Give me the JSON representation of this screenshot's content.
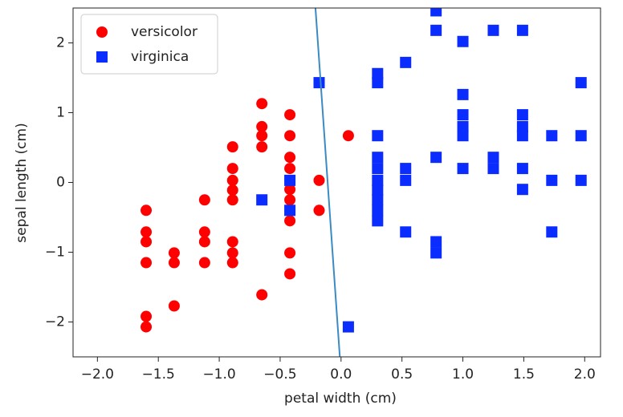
{
  "chart_data": {
    "type": "scatter",
    "x_label": "petal width (cm)",
    "y_label": "sepal length (cm)",
    "xlim": [
      -2.2,
      2.13
    ],
    "ylim": [
      -2.5,
      2.5
    ],
    "xticks": [
      {
        "value": -2,
        "label": "−2.0"
      },
      {
        "value": -1.5,
        "label": "−1.5"
      },
      {
        "value": -1,
        "label": "−1.0"
      },
      {
        "value": -0.5,
        "label": "−0.5"
      },
      {
        "value": 0,
        "label": "0.0"
      },
      0.5,
      {
        "value": 1,
        "label": "1.0"
      },
      1.5,
      {
        "value": 2,
        "label": "2.0"
      }
    ],
    "yticks": [
      {
        "value": -2,
        "label": "−2"
      },
      {
        "value": -1,
        "label": "−1"
      },
      0,
      1,
      2
    ],
    "legend": "upper left",
    "series": [
      {
        "name": "versicolor",
        "color": "#ff0000",
        "marker": "circle",
        "x": [
          -1.6,
          -1.6,
          -1.6,
          -1.6,
          -1.6,
          -1.6,
          -1.37,
          -1.37,
          -1.37,
          -1.12,
          -1.12,
          -1.12,
          -1.12,
          -0.89,
          -0.89,
          -0.89,
          -0.89,
          -0.89,
          -0.89,
          -0.89,
          -0.89,
          -0.65,
          -0.65,
          -0.65,
          -0.65,
          -0.65,
          -0.42,
          -0.42,
          -0.42,
          -0.42,
          -0.42,
          -0.42,
          -0.42,
          -0.42,
          -0.42,
          -0.18,
          -0.18,
          0.06
        ],
        "values": [
          -0.4,
          -0.71,
          -0.85,
          -1.15,
          -1.92,
          -2.07,
          -1.01,
          -1.15,
          -1.77,
          -0.25,
          -0.71,
          -0.85,
          -1.15,
          0.51,
          0.2,
          0.03,
          -0.11,
          -0.25,
          -0.85,
          -1.01,
          -1.15,
          1.13,
          0.8,
          0.67,
          0.51,
          -1.61,
          0.97,
          0.67,
          0.36,
          0.2,
          -0.1,
          -0.25,
          -0.55,
          -1.01,
          -1.31,
          0.03,
          -0.4,
          0.67
        ]
      },
      {
        "name": "virginica",
        "color": "#0a2cff",
        "marker": "square",
        "x": [
          -0.65,
          -0.42,
          -0.42,
          -0.18,
          0.06,
          0.3,
          0.3,
          0.3,
          0.3,
          0.3,
          0.3,
          0.3,
          0.3,
          0.3,
          0.3,
          0.53,
          0.53,
          0.53,
          0.53,
          0.78,
          0.78,
          0.78,
          0.78,
          0.78,
          1.0,
          1.0,
          1.0,
          1.0,
          1.0,
          1.0,
          1.25,
          1.25,
          1.25,
          1.49,
          1.49,
          1.49,
          1.49,
          1.49,
          1.49,
          1.73,
          1.73,
          1.73,
          1.97,
          1.97,
          1.97
        ],
        "values": [
          -0.25,
          0.03,
          -0.4,
          1.43,
          -2.07,
          1.56,
          1.43,
          0.67,
          0.36,
          0.2,
          0.03,
          -0.11,
          -0.25,
          -0.4,
          -0.55,
          1.72,
          0.2,
          0.03,
          -0.71,
          2.46,
          2.18,
          0.36,
          -0.85,
          -1.01,
          2.02,
          1.26,
          0.97,
          0.8,
          0.67,
          0.2,
          2.18,
          0.36,
          0.2,
          2.18,
          0.97,
          0.8,
          0.67,
          0.2,
          -0.1,
          0.67,
          0.03,
          -0.71,
          1.43,
          0.67,
          0.03
        ]
      }
    ],
    "boundary": {
      "color": "#3b8bc2",
      "x": [
        -0.21,
        -0.01
      ],
      "values": [
        2.5,
        -2.5
      ]
    }
  }
}
